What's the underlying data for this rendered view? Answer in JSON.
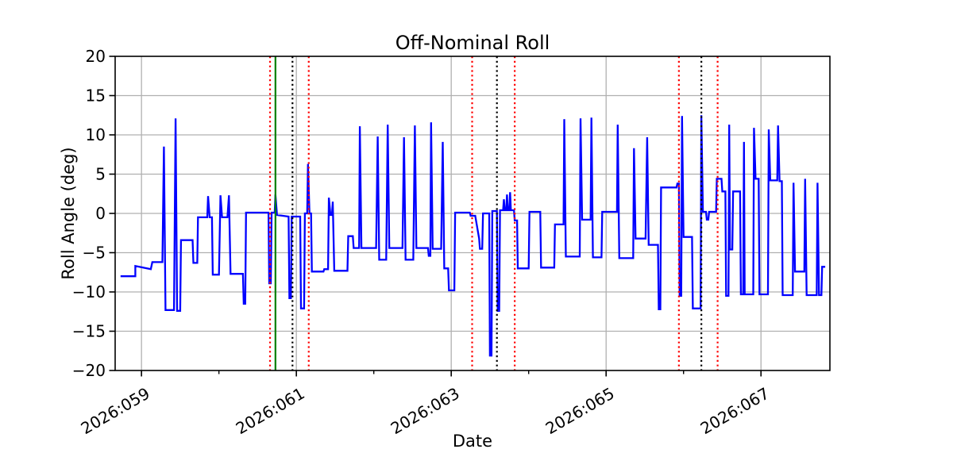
{
  "figure": {
    "title": "Off-Nominal Roll",
    "xlabel": "Date",
    "ylabel": "Roll Angle (deg)"
  },
  "chart_data": {
    "type": "line",
    "title": "Off-Nominal Roll",
    "xlabel": "Date",
    "ylabel": "Roll Angle (deg)",
    "x_unit": "year:day_of_year (2026, day 58.66 to 67.89)",
    "xlim": [
      58.66,
      67.89
    ],
    "ylim": [
      -20,
      20
    ],
    "grid": true,
    "grid_color": "#b0b0b0",
    "background_color": "#ffffff",
    "x_major_ticks": [
      {
        "day": 59,
        "label": "2026:059"
      },
      {
        "day": 61,
        "label": "2026:061"
      },
      {
        "day": 63,
        "label": "2026:063"
      },
      {
        "day": 65,
        "label": "2026:065"
      },
      {
        "day": 67,
        "label": "2026:067"
      }
    ],
    "x_minor_ticks": [
      60,
      62,
      64,
      66
    ],
    "y_ticks": [
      {
        "v": 20,
        "label": "20"
      },
      {
        "v": 15,
        "label": "15"
      },
      {
        "v": 10,
        "label": "10"
      },
      {
        "v": 5,
        "label": "5"
      },
      {
        "v": 0,
        "label": "0"
      },
      {
        "v": -5,
        "label": "−5"
      },
      {
        "v": -10,
        "label": "−10"
      },
      {
        "v": -15,
        "label": "−15"
      },
      {
        "v": -20,
        "label": "−20"
      }
    ],
    "series": [
      {
        "name": "off-nominal-roll",
        "color": "#0000ff",
        "linewidth": 2.3,
        "points": [
          [
            58.73,
            -8.0
          ],
          [
            58.92,
            -8.0
          ],
          [
            58.92,
            -6.7
          ],
          [
            59.12,
            -7.1
          ],
          [
            59.14,
            -6.2
          ],
          [
            59.27,
            -6.2
          ],
          [
            59.29,
            8.5
          ],
          [
            59.31,
            -12.3
          ],
          [
            59.42,
            -12.3
          ],
          [
            59.44,
            12.1
          ],
          [
            59.46,
            -12.4
          ],
          [
            59.5,
            -12.4
          ],
          [
            59.51,
            -3.4
          ],
          [
            59.66,
            -3.4
          ],
          [
            59.67,
            -6.3
          ],
          [
            59.72,
            -6.3
          ],
          [
            59.73,
            -0.5
          ],
          [
            59.85,
            -0.5
          ],
          [
            59.86,
            2.2
          ],
          [
            59.88,
            -0.5
          ],
          [
            59.91,
            -0.5
          ],
          [
            59.92,
            -7.8
          ],
          [
            60.0,
            -7.8
          ],
          [
            60.02,
            2.3
          ],
          [
            60.04,
            -0.5
          ],
          [
            60.11,
            -0.5
          ],
          [
            60.13,
            2.3
          ],
          [
            60.15,
            -7.7
          ],
          [
            60.31,
            -7.7
          ],
          [
            60.32,
            -11.5
          ],
          [
            60.34,
            -11.5
          ],
          [
            60.35,
            0.1
          ],
          [
            60.64,
            0.1
          ],
          [
            60.65,
            -8.9
          ],
          [
            60.67,
            -8.9
          ],
          [
            60.68,
            0.1
          ],
          [
            60.72,
            0.1
          ],
          [
            60.73,
            2.4
          ],
          [
            60.75,
            -0.2
          ],
          [
            60.9,
            -0.4
          ],
          [
            60.91,
            -10.8
          ],
          [
            60.93,
            -10.8
          ],
          [
            60.94,
            -0.4
          ],
          [
            61.05,
            -0.4
          ],
          [
            61.06,
            -12.1
          ],
          [
            61.1,
            -12.1
          ],
          [
            61.11,
            0.0
          ],
          [
            61.14,
            0.0
          ],
          [
            61.15,
            6.3
          ],
          [
            61.17,
            0.0
          ],
          [
            61.19,
            0.0
          ],
          [
            61.2,
            -7.4
          ],
          [
            61.35,
            -7.4
          ],
          [
            61.36,
            -7.1
          ],
          [
            61.41,
            -7.1
          ],
          [
            61.42,
            2.0
          ],
          [
            61.44,
            -0.2
          ],
          [
            61.46,
            -0.2
          ],
          [
            61.47,
            1.5
          ],
          [
            61.49,
            -7.3
          ],
          [
            61.66,
            -7.3
          ],
          [
            61.67,
            -2.9
          ],
          [
            61.73,
            -2.9
          ],
          [
            61.74,
            -4.4
          ],
          [
            61.81,
            -4.4
          ],
          [
            61.82,
            11.1
          ],
          [
            61.84,
            -4.4
          ],
          [
            62.03,
            -4.4
          ],
          [
            62.05,
            9.8
          ],
          [
            62.07,
            -5.9
          ],
          [
            62.16,
            -5.9
          ],
          [
            62.18,
            11.3
          ],
          [
            62.2,
            -4.4
          ],
          [
            62.37,
            -4.4
          ],
          [
            62.39,
            9.7
          ],
          [
            62.41,
            -5.9
          ],
          [
            62.51,
            -5.9
          ],
          [
            62.53,
            11.2
          ],
          [
            62.55,
            -4.4
          ],
          [
            62.7,
            -4.4
          ],
          [
            62.71,
            -5.4
          ],
          [
            62.73,
            -5.4
          ],
          [
            62.74,
            11.6
          ],
          [
            62.76,
            -4.5
          ],
          [
            62.87,
            -4.5
          ],
          [
            62.89,
            9.1
          ],
          [
            62.91,
            -7.0
          ],
          [
            62.96,
            -7.0
          ],
          [
            62.97,
            -9.8
          ],
          [
            63.04,
            -9.8
          ],
          [
            63.05,
            0.1
          ],
          [
            63.24,
            0.1
          ],
          [
            63.25,
            -0.3
          ],
          [
            63.31,
            -0.3
          ],
          [
            63.36,
            -3.2
          ],
          [
            63.37,
            -4.5
          ],
          [
            63.4,
            -4.5
          ],
          [
            63.41,
            0.0
          ],
          [
            63.49,
            0.0
          ],
          [
            63.5,
            -18.1
          ],
          [
            63.52,
            -18.1
          ],
          [
            63.53,
            0.3
          ],
          [
            63.59,
            0.3
          ],
          [
            63.6,
            -12.4
          ],
          [
            63.62,
            -12.4
          ],
          [
            63.63,
            0.4
          ],
          [
            63.67,
            0.4
          ],
          [
            63.68,
            1.8
          ],
          [
            63.69,
            0.4
          ],
          [
            63.71,
            0.4
          ],
          [
            63.72,
            2.4
          ],
          [
            63.73,
            0.4
          ],
          [
            63.75,
            0.4
          ],
          [
            63.76,
            2.7
          ],
          [
            63.77,
            0.4
          ],
          [
            63.81,
            0.4
          ],
          [
            63.82,
            -0.9
          ],
          [
            63.85,
            -0.9
          ],
          [
            63.86,
            -7.0
          ],
          [
            64.0,
            -7.0
          ],
          [
            64.01,
            0.2
          ],
          [
            64.15,
            0.2
          ],
          [
            64.16,
            -6.9
          ],
          [
            64.33,
            -6.9
          ],
          [
            64.34,
            -1.4
          ],
          [
            64.45,
            -1.4
          ],
          [
            64.46,
            12.0
          ],
          [
            64.48,
            -5.5
          ],
          [
            64.66,
            -5.5
          ],
          [
            64.67,
            12.1
          ],
          [
            64.69,
            -0.8
          ],
          [
            64.8,
            -0.8
          ],
          [
            64.81,
            12.2
          ],
          [
            64.83,
            -5.6
          ],
          [
            64.94,
            -5.6
          ],
          [
            64.95,
            0.2
          ],
          [
            65.14,
            0.2
          ],
          [
            65.15,
            11.3
          ],
          [
            65.17,
            -5.7
          ],
          [
            65.35,
            -5.7
          ],
          [
            65.36,
            8.3
          ],
          [
            65.38,
            -3.2
          ],
          [
            65.51,
            -3.2
          ],
          [
            65.53,
            9.7
          ],
          [
            65.55,
            -4.0
          ],
          [
            65.67,
            -4.0
          ],
          [
            65.68,
            -12.2
          ],
          [
            65.7,
            -12.2
          ],
          [
            65.71,
            3.3
          ],
          [
            65.91,
            3.3
          ],
          [
            65.92,
            3.8
          ],
          [
            65.94,
            3.8
          ],
          [
            65.95,
            -10.5
          ],
          [
            65.97,
            -10.5
          ],
          [
            65.98,
            12.4
          ],
          [
            66.0,
            -3.0
          ],
          [
            66.11,
            -3.0
          ],
          [
            66.12,
            -12.1
          ],
          [
            66.22,
            -12.1
          ],
          [
            66.23,
            12.5
          ],
          [
            66.25,
            0.2
          ],
          [
            66.29,
            0.2
          ],
          [
            66.3,
            -0.8
          ],
          [
            66.32,
            -0.8
          ],
          [
            66.33,
            0.2
          ],
          [
            66.42,
            0.2
          ],
          [
            66.43,
            4.4
          ],
          [
            66.49,
            4.4
          ],
          [
            66.5,
            2.8
          ],
          [
            66.54,
            2.8
          ],
          [
            66.55,
            -10.5
          ],
          [
            66.58,
            -10.5
          ],
          [
            66.59,
            11.3
          ],
          [
            66.6,
            -4.6
          ],
          [
            66.63,
            -4.6
          ],
          [
            66.64,
            2.8
          ],
          [
            66.73,
            2.8
          ],
          [
            66.74,
            -10.3
          ],
          [
            66.77,
            -10.3
          ],
          [
            66.78,
            9.1
          ],
          [
            66.79,
            -10.3
          ],
          [
            66.9,
            -10.3
          ],
          [
            66.91,
            10.9
          ],
          [
            66.93,
            4.4
          ],
          [
            66.97,
            4.4
          ],
          [
            66.98,
            -10.3
          ],
          [
            67.09,
            -10.3
          ],
          [
            67.1,
            10.7
          ],
          [
            67.12,
            4.2
          ],
          [
            67.21,
            4.2
          ],
          [
            67.22,
            11.2
          ],
          [
            67.24,
            4.1
          ],
          [
            67.27,
            4.1
          ],
          [
            67.28,
            -10.4
          ],
          [
            67.41,
            -10.4
          ],
          [
            67.42,
            3.9
          ],
          [
            67.44,
            -7.4
          ],
          [
            67.56,
            -7.4
          ],
          [
            67.57,
            4.4
          ],
          [
            67.59,
            -10.4
          ],
          [
            67.72,
            -10.4
          ],
          [
            67.73,
            3.9
          ],
          [
            67.75,
            -10.4
          ],
          [
            67.78,
            -10.4
          ],
          [
            67.79,
            -6.8
          ],
          [
            67.83,
            -6.8
          ]
        ]
      }
    ],
    "vlines": [
      {
        "day": 60.66,
        "color": "#ff0000",
        "style": "dotted"
      },
      {
        "day": 60.73,
        "color": "#008000",
        "style": "solid"
      },
      {
        "day": 60.95,
        "color": "#000000",
        "style": "dotted"
      },
      {
        "day": 61.16,
        "color": "#ff0000",
        "style": "dotted"
      },
      {
        "day": 63.27,
        "color": "#ff0000",
        "style": "dotted"
      },
      {
        "day": 63.59,
        "color": "#000000",
        "style": "dotted"
      },
      {
        "day": 63.82,
        "color": "#ff0000",
        "style": "dotted"
      },
      {
        "day": 65.94,
        "color": "#ff0000",
        "style": "dotted"
      },
      {
        "day": 66.23,
        "color": "#000000",
        "style": "dotted"
      },
      {
        "day": 66.44,
        "color": "#ff0000",
        "style": "dotted"
      }
    ],
    "legend": null
  }
}
